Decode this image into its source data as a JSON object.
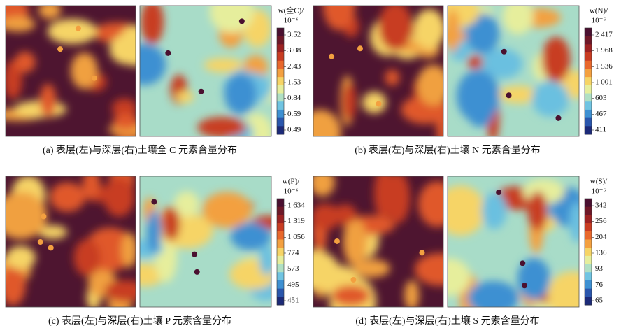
{
  "panels": [
    {
      "caption": "(a) 表层(左)与深层(右)土壤全 C 元素含量分布",
      "legend_title": "w(全C)/",
      "legend_unit": "10⁻⁶",
      "ticks": [
        "3.52",
        "3.08",
        "2.43",
        "1.53",
        "0.84",
        "0.59",
        "0.49"
      ]
    },
    {
      "caption": "(b) 表层(左)与深层(右)土壤 N 元素含量分布",
      "legend_title": "w(N)/",
      "legend_unit": "10⁻⁶",
      "ticks": [
        "2 417",
        "1 968",
        "1 536",
        "1 001",
        "603",
        "467",
        "411"
      ]
    },
    {
      "caption": "(c) 表层(左)与深层(右)土壤 P 元素含量分布",
      "legend_title": "w(P)/",
      "legend_unit": "10⁻⁶",
      "ticks": [
        "1 634",
        "1 319",
        "1 056",
        "774",
        "573",
        "495",
        "451"
      ]
    },
    {
      "caption": "(d) 表层(左)与深层(右)土壤 S 元素含量分布",
      "legend_title": "w(S)/",
      "legend_unit": "10⁻⁶",
      "ticks": [
        "342",
        "256",
        "204",
        "136",
        "93",
        "76",
        "65"
      ]
    }
  ]
}
